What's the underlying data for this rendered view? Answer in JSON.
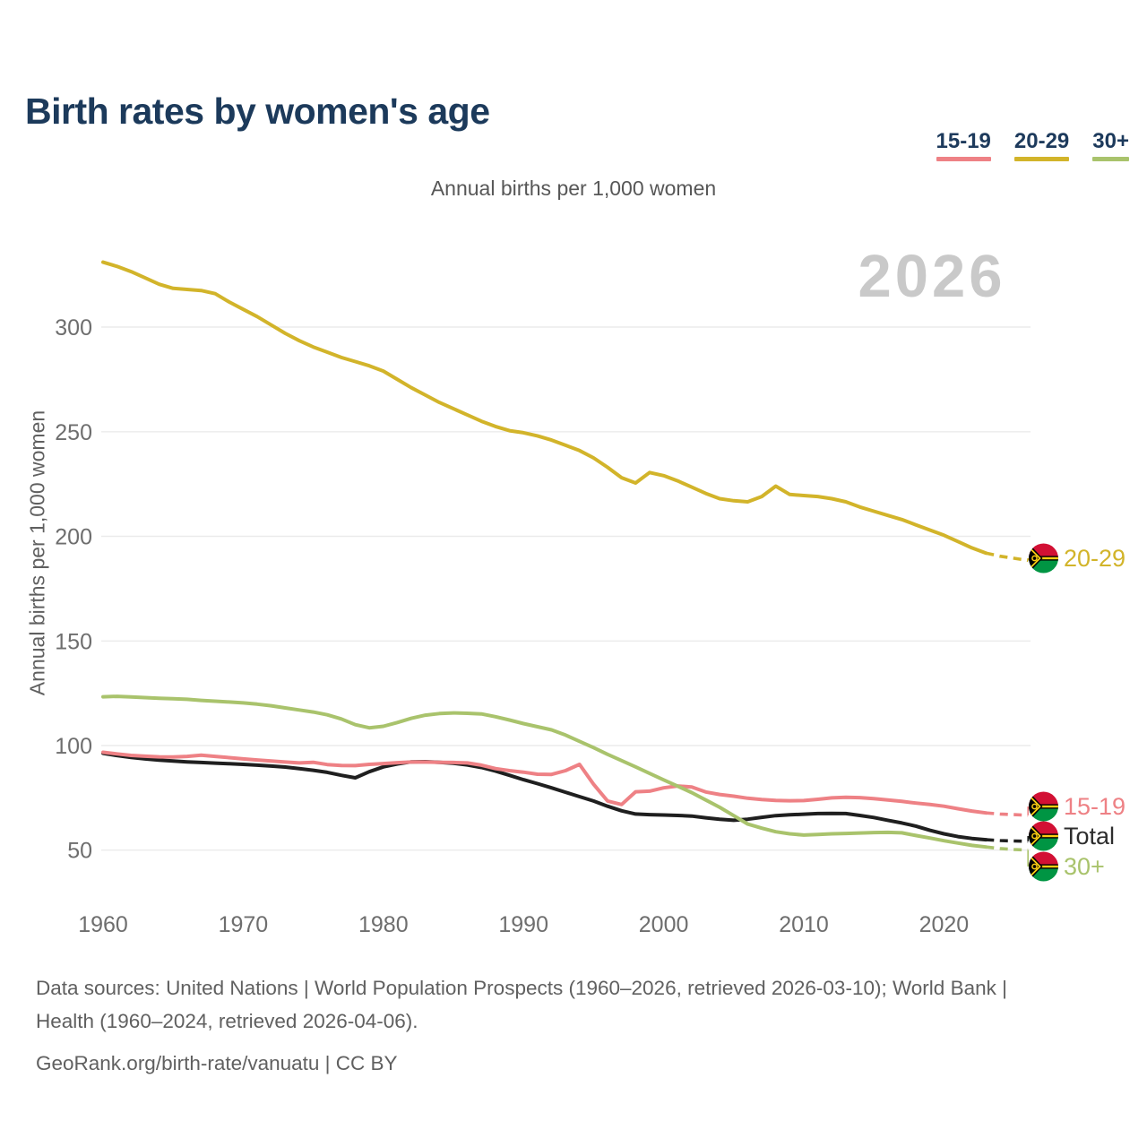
{
  "page": {
    "title": "Birth rates by women's age",
    "subtitle": "Annual births per 1,000 women",
    "y_axis_title": "Annual births per 1,000 women",
    "watermark": "2026",
    "footer_line1": "Data sources: United Nations | World Population Prospects (1960–2026, retrieved 2026-03-10); World Bank | Health (1960–2024, retrieved 2026-04-06).",
    "footer_line2": "GeoRank.org/birth-rate/vanuatu | CC BY"
  },
  "legend": {
    "items": [
      {
        "label": "15-19",
        "color": "#ee8185"
      },
      {
        "label": "20-29",
        "color": "#d2b42a"
      },
      {
        "label": "30+",
        "color": "#a9c36c"
      }
    ]
  },
  "chart_data": {
    "type": "line",
    "title": "Birth rates by women's age",
    "subtitle": "Annual births per 1,000 women",
    "ylabel": "Annual births per 1,000 women",
    "xlabel": "",
    "x_tick_labels": [
      1960,
      1970,
      1980,
      1990,
      2000,
      2010,
      2020
    ],
    "y_tick_labels": [
      50,
      100,
      150,
      200,
      250,
      300
    ],
    "xlim": [
      1960,
      2026
    ],
    "ylim": [
      25,
      335
    ],
    "grid": "horizontal",
    "legend_position": "top-right",
    "watermark": "2026",
    "projection_dashed_from": 2023,
    "flag_icon": "vanuatu-flag",
    "country": "Vanuatu",
    "series": [
      {
        "name": "20-29",
        "color": "#d2b42a",
        "end_label": "20-29",
        "points": [
          [
            1960,
            331
          ],
          [
            1961,
            329
          ],
          [
            1962,
            326.5
          ],
          [
            1963,
            323.5
          ],
          [
            1964,
            320.5
          ],
          [
            1965,
            318.5
          ],
          [
            1966,
            318
          ],
          [
            1967,
            317.5
          ],
          [
            1968,
            316
          ],
          [
            1969,
            312
          ],
          [
            1970,
            308.5
          ],
          [
            1971,
            305
          ],
          [
            1972,
            301
          ],
          [
            1973,
            297
          ],
          [
            1974,
            293.5
          ],
          [
            1975,
            290.5
          ],
          [
            1976,
            288
          ],
          [
            1977,
            285.5
          ],
          [
            1978,
            283.5
          ],
          [
            1979,
            281.5
          ],
          [
            1980,
            279
          ],
          [
            1981,
            275
          ],
          [
            1982,
            271
          ],
          [
            1983,
            267.5
          ],
          [
            1984,
            264
          ],
          [
            1985,
            261
          ],
          [
            1986,
            258
          ],
          [
            1987,
            255
          ],
          [
            1988,
            252.5
          ],
          [
            1989,
            250.5
          ],
          [
            1990,
            249.5
          ],
          [
            1991,
            248
          ],
          [
            1992,
            246
          ],
          [
            1993,
            243.5
          ],
          [
            1994,
            241
          ],
          [
            1995,
            237.5
          ],
          [
            1996,
            233
          ],
          [
            1997,
            228
          ],
          [
            1998,
            225.5
          ],
          [
            1999,
            230.5
          ],
          [
            2000,
            229
          ],
          [
            2001,
            226.5
          ],
          [
            2002,
            223.5
          ],
          [
            2003,
            220.5
          ],
          [
            2004,
            218
          ],
          [
            2005,
            217
          ],
          [
            2006,
            216.5
          ],
          [
            2007,
            219
          ],
          [
            2008,
            224
          ],
          [
            2009,
            220
          ],
          [
            2010,
            219.5
          ],
          [
            2011,
            219
          ],
          [
            2012,
            218
          ],
          [
            2013,
            216.5
          ],
          [
            2014,
            214
          ],
          [
            2015,
            212
          ],
          [
            2016,
            210
          ],
          [
            2017,
            208
          ],
          [
            2018,
            205.5
          ],
          [
            2019,
            203
          ],
          [
            2020,
            200.5
          ],
          [
            2021,
            197.5
          ],
          [
            2022,
            194.5
          ],
          [
            2023,
            192
          ],
          [
            2024,
            190.5
          ],
          [
            2025,
            189.5
          ],
          [
            2026,
            188.5
          ]
        ]
      },
      {
        "name": "Total",
        "color": "#1f1f1f",
        "end_label": "Total",
        "points": [
          [
            1960,
            96.3
          ],
          [
            1961,
            95.2
          ],
          [
            1962,
            94.3
          ],
          [
            1963,
            93.6
          ],
          [
            1964,
            93
          ],
          [
            1965,
            92.6
          ],
          [
            1966,
            92.2
          ],
          [
            1967,
            91.9
          ],
          [
            1968,
            91.6
          ],
          [
            1969,
            91.3
          ],
          [
            1970,
            91
          ],
          [
            1971,
            90.6
          ],
          [
            1972,
            90.2
          ],
          [
            1973,
            89.7
          ],
          [
            1974,
            89
          ],
          [
            1975,
            88.2
          ],
          [
            1976,
            87.2
          ],
          [
            1977,
            85.8
          ],
          [
            1978,
            84.6
          ],
          [
            1979,
            87.5
          ],
          [
            1980,
            89.8
          ],
          [
            1981,
            91.2
          ],
          [
            1982,
            92.2
          ],
          [
            1983,
            92.3
          ],
          [
            1984,
            92
          ],
          [
            1985,
            91.5
          ],
          [
            1986,
            90.7
          ],
          [
            1987,
            89.5
          ],
          [
            1988,
            87.8
          ],
          [
            1989,
            85.8
          ],
          [
            1990,
            83.7
          ],
          [
            1991,
            81.8
          ],
          [
            1992,
            79.8
          ],
          [
            1993,
            77.7
          ],
          [
            1994,
            75.6
          ],
          [
            1995,
            73.5
          ],
          [
            1996,
            71
          ],
          [
            1997,
            68.8
          ],
          [
            1998,
            67.3
          ],
          [
            1999,
            67
          ],
          [
            2000,
            66.8
          ],
          [
            2001,
            66.6
          ],
          [
            2002,
            66.3
          ],
          [
            2003,
            65.5
          ],
          [
            2004,
            64.8
          ],
          [
            2005,
            64.3
          ],
          [
            2006,
            64.8
          ],
          [
            2007,
            65.7
          ],
          [
            2008,
            66.5
          ],
          [
            2009,
            66.9
          ],
          [
            2010,
            67.2
          ],
          [
            2011,
            67.5
          ],
          [
            2012,
            67.6
          ],
          [
            2013,
            67.5
          ],
          [
            2014,
            66.6
          ],
          [
            2015,
            65.6
          ],
          [
            2016,
            64.3
          ],
          [
            2017,
            63
          ],
          [
            2018,
            61.5
          ],
          [
            2019,
            59.5
          ],
          [
            2020,
            57.8
          ],
          [
            2021,
            56.5
          ],
          [
            2022,
            55.6
          ],
          [
            2023,
            55
          ],
          [
            2024,
            54.6
          ],
          [
            2025,
            54.4
          ],
          [
            2026,
            54.2
          ]
        ]
      },
      {
        "name": "15-19",
        "color": "#ee8185",
        "end_label": "15-19",
        "points": [
          [
            1960,
            96.8
          ],
          [
            1961,
            96
          ],
          [
            1962,
            95.3
          ],
          [
            1963,
            94.9
          ],
          [
            1964,
            94.6
          ],
          [
            1965,
            94.5
          ],
          [
            1966,
            94.8
          ],
          [
            1967,
            95.4
          ],
          [
            1968,
            94.8
          ],
          [
            1969,
            94.2
          ],
          [
            1970,
            93.6
          ],
          [
            1971,
            93.1
          ],
          [
            1972,
            92.6
          ],
          [
            1973,
            92.1
          ],
          [
            1974,
            91.7
          ],
          [
            1975,
            92
          ],
          [
            1976,
            90.9
          ],
          [
            1977,
            90.5
          ],
          [
            1978,
            90.4
          ],
          [
            1979,
            91
          ],
          [
            1980,
            91.4
          ],
          [
            1981,
            91.8
          ],
          [
            1982,
            92.1
          ],
          [
            1983,
            92.1
          ],
          [
            1984,
            92
          ],
          [
            1985,
            91.9
          ],
          [
            1986,
            91.7
          ],
          [
            1987,
            90.6
          ],
          [
            1988,
            89
          ],
          [
            1989,
            88
          ],
          [
            1990,
            87.3
          ],
          [
            1991,
            86.3
          ],
          [
            1992,
            86.2
          ],
          [
            1993,
            88
          ],
          [
            1994,
            91
          ],
          [
            1995,
            81.5
          ],
          [
            1996,
            73.5
          ],
          [
            1997,
            71.8
          ],
          [
            1998,
            77.9
          ],
          [
            1999,
            78.2
          ],
          [
            2000,
            79.8
          ],
          [
            2001,
            80.7
          ],
          [
            2002,
            80.2
          ],
          [
            2003,
            77.8
          ],
          [
            2004,
            76.6
          ],
          [
            2005,
            75.8
          ],
          [
            2006,
            74.8
          ],
          [
            2007,
            74.2
          ],
          [
            2008,
            73.8
          ],
          [
            2009,
            73.6
          ],
          [
            2010,
            73.7
          ],
          [
            2011,
            74.3
          ],
          [
            2012,
            75
          ],
          [
            2013,
            75.3
          ],
          [
            2014,
            75.1
          ],
          [
            2015,
            74.6
          ],
          [
            2016,
            74
          ],
          [
            2017,
            73.3
          ],
          [
            2018,
            72.5
          ],
          [
            2019,
            71.8
          ],
          [
            2020,
            71
          ],
          [
            2021,
            69.8
          ],
          [
            2022,
            68.7
          ],
          [
            2023,
            67.8
          ],
          [
            2024,
            67.3
          ],
          [
            2025,
            67
          ],
          [
            2026,
            66.7
          ]
        ]
      },
      {
        "name": "30+",
        "color": "#a9c36c",
        "end_label": "30+",
        "points": [
          [
            1960,
            123.3
          ],
          [
            1961,
            123.5
          ],
          [
            1962,
            123.2
          ],
          [
            1963,
            122.9
          ],
          [
            1964,
            122.6
          ],
          [
            1965,
            122.4
          ],
          [
            1966,
            122.1
          ],
          [
            1967,
            121.6
          ],
          [
            1968,
            121.2
          ],
          [
            1969,
            120.8
          ],
          [
            1970,
            120.4
          ],
          [
            1971,
            119.8
          ],
          [
            1972,
            119
          ],
          [
            1973,
            118
          ],
          [
            1974,
            117
          ],
          [
            1975,
            116
          ],
          [
            1976,
            114.7
          ],
          [
            1977,
            112.7
          ],
          [
            1978,
            110
          ],
          [
            1979,
            108.5
          ],
          [
            1980,
            109.2
          ],
          [
            1981,
            111
          ],
          [
            1982,
            113
          ],
          [
            1983,
            114.5
          ],
          [
            1984,
            115.3
          ],
          [
            1985,
            115.6
          ],
          [
            1986,
            115.4
          ],
          [
            1987,
            115.1
          ],
          [
            1988,
            113.8
          ],
          [
            1989,
            112.2
          ],
          [
            1990,
            110.5
          ],
          [
            1991,
            109
          ],
          [
            1992,
            107.5
          ],
          [
            1993,
            105
          ],
          [
            1994,
            102
          ],
          [
            1995,
            99
          ],
          [
            1996,
            95.8
          ],
          [
            1997,
            92.8
          ],
          [
            1998,
            89.8
          ],
          [
            1999,
            86.7
          ],
          [
            2000,
            83.6
          ],
          [
            2001,
            80.6
          ],
          [
            2002,
            77.5
          ],
          [
            2003,
            74
          ],
          [
            2004,
            70.5
          ],
          [
            2005,
            66.5
          ],
          [
            2006,
            62.5
          ],
          [
            2007,
            60.5
          ],
          [
            2008,
            58.8
          ],
          [
            2009,
            57.8
          ],
          [
            2010,
            57.2
          ],
          [
            2011,
            57.5
          ],
          [
            2012,
            57.8
          ],
          [
            2013,
            58
          ],
          [
            2014,
            58.2
          ],
          [
            2015,
            58.4
          ],
          [
            2016,
            58.5
          ],
          [
            2017,
            58.3
          ],
          [
            2018,
            57
          ],
          [
            2019,
            55.8
          ],
          [
            2020,
            54.5
          ],
          [
            2021,
            53.4
          ],
          [
            2022,
            52.3
          ],
          [
            2023,
            51.5
          ],
          [
            2024,
            50.8
          ],
          [
            2025,
            50.3
          ],
          [
            2026,
            50
          ]
        ]
      }
    ]
  }
}
